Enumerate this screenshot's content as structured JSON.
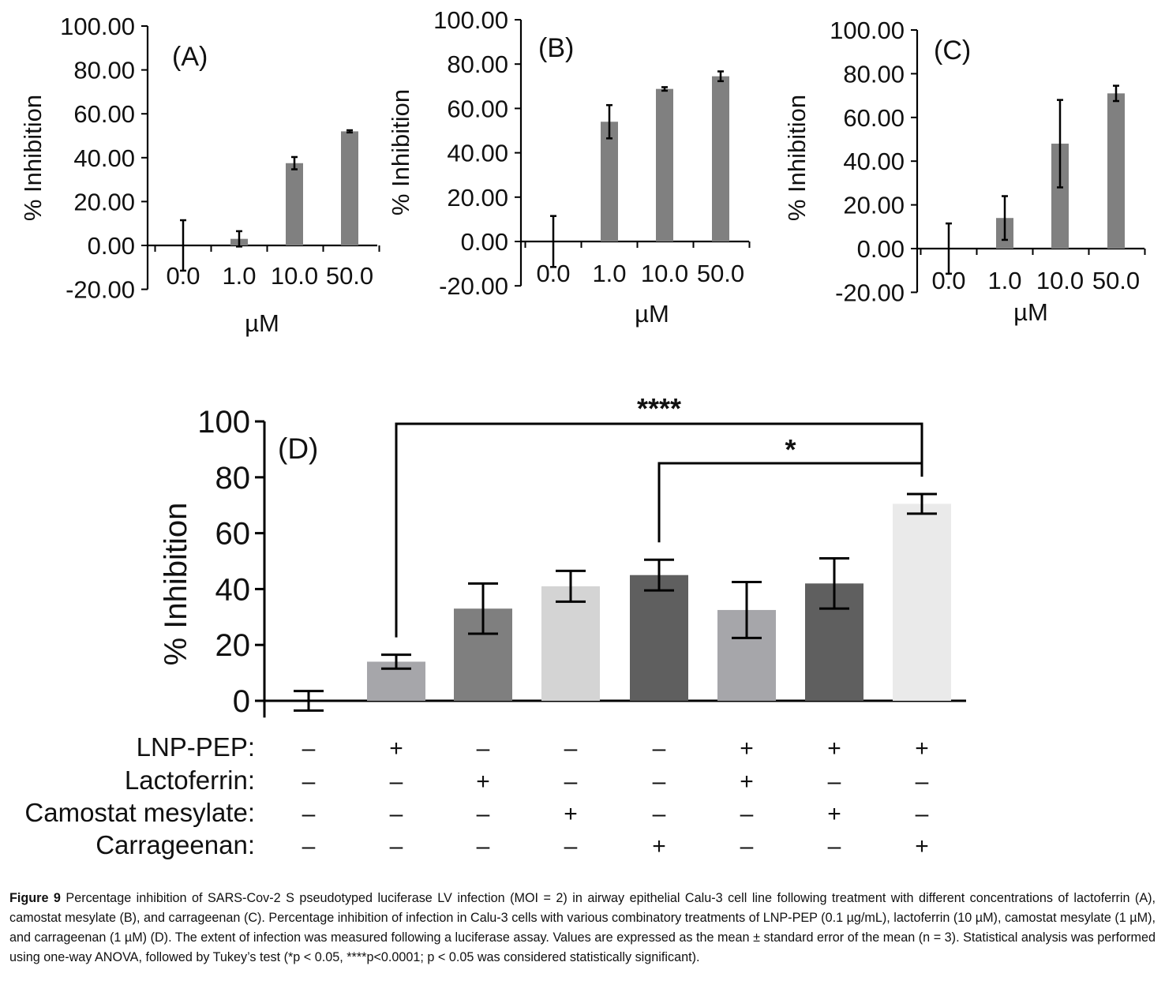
{
  "chart_data": [
    {
      "type": "bar",
      "panel": "(A)",
      "categories": [
        "0.0",
        "1.0",
        "10.0",
        "50.0"
      ],
      "values": [
        0.0,
        3.0,
        37.5,
        52.0
      ],
      "errors": [
        11.5,
        3.5,
        2.8,
        0.5
      ],
      "xlabel": "µM",
      "ylabel": "% Inhibition",
      "ylim": [
        -20,
        100
      ],
      "yticks": [
        "100.00",
        "80.00",
        "60.00",
        "40.00",
        "20.00",
        "0.00",
        "-20.00"
      ],
      "colors": [
        "#808080"
      ]
    },
    {
      "type": "bar",
      "panel": "(B)",
      "categories": [
        "0.0",
        "1.0",
        "10.0",
        "50.0"
      ],
      "values": [
        0.0,
        54.0,
        68.8,
        74.5
      ],
      "errors": [
        11.5,
        7.5,
        0.8,
        2.2
      ],
      "xlabel": "µM",
      "ylabel": "% Inhibition",
      "ylim": [
        -20,
        100
      ],
      "yticks": [
        "100.00",
        "80.00",
        "60.00",
        "40.00",
        "20.00",
        "0.00",
        "-20.00"
      ],
      "colors": [
        "#808080"
      ]
    },
    {
      "type": "bar",
      "panel": "(C)",
      "categories": [
        "0.0",
        "1.0",
        "10.0",
        "50.0"
      ],
      "values": [
        0.0,
        14.0,
        48.0,
        71.0
      ],
      "errors": [
        11.5,
        10.0,
        20.0,
        3.5
      ],
      "xlabel": "µM",
      "ylabel": "% Inhibition",
      "ylim": [
        -20,
        100
      ],
      "yticks": [
        "100.00",
        "80.00",
        "60.00",
        "40.00",
        "20.00",
        "0.00",
        "-20.00"
      ],
      "colors": [
        "#808080"
      ]
    },
    {
      "type": "bar",
      "panel": "(D)",
      "values": [
        0.0,
        14.0,
        33.0,
        41.0,
        45.0,
        32.5,
        42.0,
        70.5
      ],
      "errors": [
        3.5,
        2.5,
        9.0,
        5.5,
        5.5,
        10.0,
        9.0,
        3.5
      ],
      "colors": [
        "#a6a6aa",
        "#a6a6aa",
        "#7f7f7f",
        "#d4d4d4",
        "#5f5f5f",
        "#a6a6aa",
        "#5f5f5f",
        "#eaeaea"
      ],
      "ylabel": "% Inhibition",
      "ylim": [
        -6,
        100
      ],
      "yticks": [
        "100",
        "80",
        "60",
        "40",
        "20",
        "0"
      ],
      "treatment_rows": [
        {
          "label": "LNP-PEP:",
          "signs": [
            "–",
            "+",
            "–",
            "–",
            "–",
            "+",
            "+",
            "+"
          ]
        },
        {
          "label": "Lactoferrin:",
          "signs": [
            "–",
            "–",
            "+",
            "–",
            "–",
            "+",
            "–",
            "–"
          ]
        },
        {
          "label": "Camostat mesylate:",
          "signs": [
            "–",
            "–",
            "–",
            "+",
            "–",
            "–",
            "+",
            "–"
          ]
        },
        {
          "label": "Carrageenan:",
          "signs": [
            "–",
            "–",
            "–",
            "–",
            "+",
            "–",
            "–",
            "+"
          ]
        }
      ],
      "significance": [
        {
          "from": 1,
          "to": 7,
          "label": "****"
        },
        {
          "from": 4,
          "to": 7,
          "label": "*"
        }
      ]
    }
  ],
  "caption": {
    "figure_label": "Figure 9",
    "text": " Percentage inhibition of SARS-Cov-2 S pseudotyped luciferase LV infection (MOI = 2) in airway epithelial Calu-3 cell line following treatment with different concentrations of lactoferrin (A), camostat mesylate (B), and carrageenan (C). Percentage inhibition of infection in Calu-3 cells with various combinatory treatments of LNP-PEP (0.1 µg/mL), lactoferrin (10 µM), camostat mesylate (1 µM), and carrageenan (1 µM) (D). The extent of infection was measured following a luciferase assay. Values are expressed as the mean ± standard error of the mean (n = 3). Statistical analysis was performed using one-way ANOVA, followed by Tukey’s test (*p < 0.05, ****p<0.0001; p < 0.05 was considered statistically significant)."
  }
}
